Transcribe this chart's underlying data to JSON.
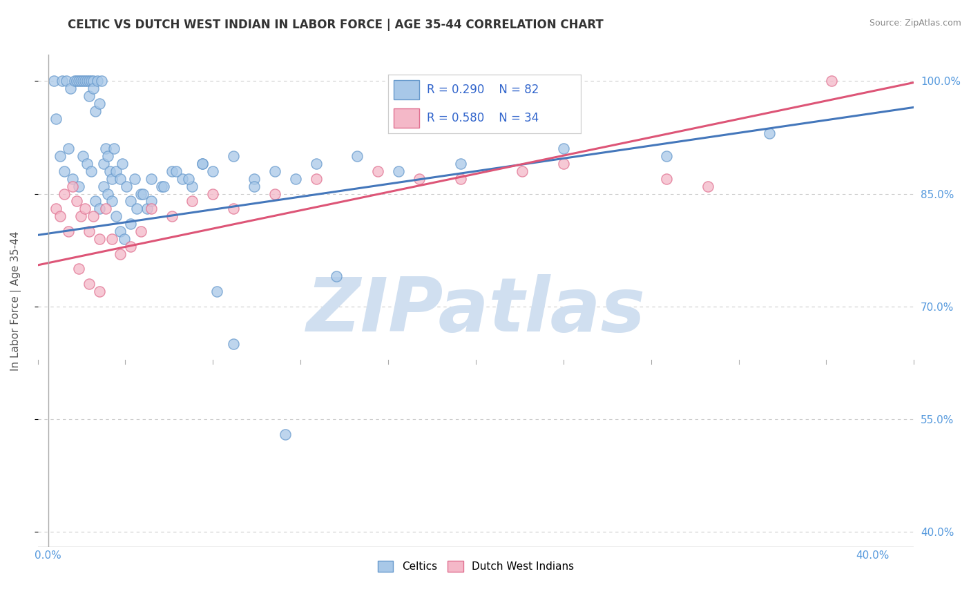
{
  "title": "CELTIC VS DUTCH WEST INDIAN IN LABOR FORCE | AGE 35-44 CORRELATION CHART",
  "source": "Source: ZipAtlas.com",
  "ylabel": "In Labor Force | Age 35-44",
  "xlim": [
    -0.005,
    0.42
  ],
  "ylim": [
    0.38,
    1.035
  ],
  "xtick_left": 0.0,
  "xtick_right": 0.4,
  "xtick_left_label": "0.0%",
  "xtick_right_label": "40.0%",
  "yticks": [
    0.4,
    0.55,
    0.7,
    0.85,
    1.0
  ],
  "yticklabels": [
    "40.0%",
    "55.0%",
    "70.0%",
    "85.0%",
    "100.0%"
  ],
  "legend_r_celtic": "R = 0.290",
  "legend_n_celtic": "N = 82",
  "legend_r_dutch": "R = 0.580",
  "legend_n_dutch": "N = 34",
  "celtic_color": "#a8c8e8",
  "celtic_edge_color": "#6699cc",
  "dutch_color": "#f4b8c8",
  "dutch_edge_color": "#e07090",
  "trend_celtic_color": "#4477bb",
  "trend_dutch_color": "#dd5577",
  "watermark": "ZIPatlas",
  "watermark_color": "#d0dff0",
  "background_color": "#ffffff",
  "grid_color": "#cccccc",
  "tick_color": "#aaaaaa",
  "right_axis_color": "#5599dd",
  "title_color": "#333333",
  "source_color": "#888888",
  "legend_text_color": "#3366cc",
  "bottom_label_color": "#888888",
  "celtic_x": [
    0.003,
    0.007,
    0.009,
    0.011,
    0.013,
    0.014,
    0.015,
    0.016,
    0.017,
    0.018,
    0.019,
    0.02,
    0.02,
    0.021,
    0.022,
    0.022,
    0.023,
    0.024,
    0.025,
    0.026,
    0.027,
    0.028,
    0.029,
    0.03,
    0.031,
    0.032,
    0.033,
    0.035,
    0.036,
    0.038,
    0.04,
    0.042,
    0.045,
    0.048,
    0.05,
    0.055,
    0.06,
    0.065,
    0.07,
    0.075,
    0.08,
    0.09,
    0.1,
    0.11,
    0.12,
    0.13,
    0.15,
    0.17,
    0.2,
    0.25,
    0.3,
    0.35,
    0.004,
    0.006,
    0.008,
    0.01,
    0.012,
    0.015,
    0.017,
    0.019,
    0.021,
    0.023,
    0.025,
    0.027,
    0.029,
    0.031,
    0.033,
    0.035,
    0.037,
    0.04,
    0.043,
    0.046,
    0.05,
    0.056,
    0.062,
    0.068,
    0.075,
    0.082,
    0.09,
    0.1,
    0.115,
    0.14
  ],
  "celtic_y": [
    1.0,
    1.0,
    1.0,
    0.99,
    1.0,
    1.0,
    1.0,
    1.0,
    1.0,
    1.0,
    1.0,
    1.0,
    0.98,
    1.0,
    1.0,
    0.99,
    0.96,
    1.0,
    0.97,
    1.0,
    0.89,
    0.91,
    0.9,
    0.88,
    0.87,
    0.91,
    0.88,
    0.87,
    0.89,
    0.86,
    0.84,
    0.87,
    0.85,
    0.83,
    0.84,
    0.86,
    0.88,
    0.87,
    0.86,
    0.89,
    0.88,
    0.9,
    0.87,
    0.88,
    0.87,
    0.89,
    0.9,
    0.88,
    0.89,
    0.91,
    0.9,
    0.93,
    0.95,
    0.9,
    0.88,
    0.91,
    0.87,
    0.86,
    0.9,
    0.89,
    0.88,
    0.84,
    0.83,
    0.86,
    0.85,
    0.84,
    0.82,
    0.8,
    0.79,
    0.81,
    0.83,
    0.85,
    0.87,
    0.86,
    0.88,
    0.87,
    0.89,
    0.72,
    0.65,
    0.86,
    0.53,
    0.74
  ],
  "dutch_x": [
    0.004,
    0.006,
    0.008,
    0.01,
    0.012,
    0.014,
    0.016,
    0.018,
    0.02,
    0.022,
    0.025,
    0.028,
    0.031,
    0.035,
    0.04,
    0.045,
    0.05,
    0.06,
    0.07,
    0.08,
    0.09,
    0.11,
    0.13,
    0.16,
    0.2,
    0.25,
    0.3,
    0.32,
    0.015,
    0.02,
    0.025,
    0.18,
    0.23,
    0.38
  ],
  "dutch_y": [
    0.83,
    0.82,
    0.85,
    0.8,
    0.86,
    0.84,
    0.82,
    0.83,
    0.8,
    0.82,
    0.79,
    0.83,
    0.79,
    0.77,
    0.78,
    0.8,
    0.83,
    0.82,
    0.84,
    0.85,
    0.83,
    0.85,
    0.87,
    0.88,
    0.87,
    0.89,
    0.87,
    0.86,
    0.75,
    0.73,
    0.72,
    0.87,
    0.88,
    1.0
  ],
  "trend_celtic_x0": -0.005,
  "trend_celtic_x1": 0.42,
  "trend_celtic_y0": 0.795,
  "trend_celtic_y1": 0.965,
  "trend_dutch_x0": -0.005,
  "trend_dutch_x1": 0.42,
  "trend_dutch_y0": 0.755,
  "trend_dutch_y1": 0.998
}
